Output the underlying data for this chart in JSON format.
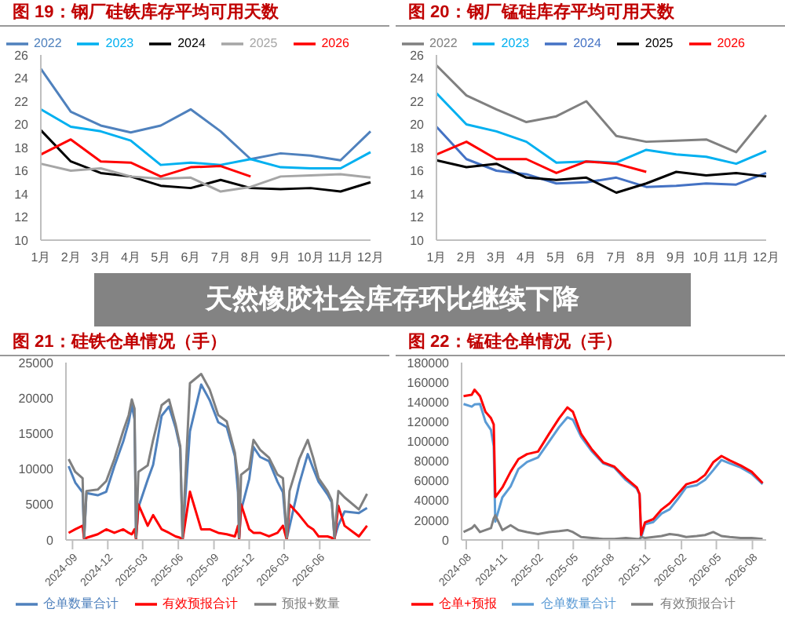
{
  "chart_data": [
    {
      "type": "line",
      "title": "图 19：钢厂硅铁库存平均可用天数",
      "categories": [
        "1月",
        "2月",
        "3月",
        "4月",
        "5月",
        "6月",
        "7月",
        "8月",
        "9月",
        "10月",
        "11月",
        "12月"
      ],
      "ylim": [
        10,
        26
      ],
      "yticks": [
        10,
        12,
        14,
        16,
        18,
        20,
        22,
        24,
        26
      ],
      "legend": "top",
      "series": [
        {
          "name": "2022",
          "color": "#4f81bd",
          "values": [
            24.8,
            21.1,
            19.9,
            19.3,
            19.9,
            21.3,
            19.4,
            17.0,
            17.5,
            17.3,
            16.9,
            19.4
          ]
        },
        {
          "name": "2023",
          "color": "#00b0f0",
          "values": [
            21.3,
            19.8,
            19.4,
            18.6,
            16.5,
            16.7,
            16.5,
            17.0,
            16.3,
            16.2,
            16.2,
            17.6
          ]
        },
        {
          "name": "2024",
          "color": "#000000",
          "values": [
            19.5,
            16.8,
            15.8,
            15.5,
            14.7,
            14.5,
            15.2,
            14.5,
            14.4,
            14.5,
            14.2,
            15.0
          ]
        },
        {
          "name": "2025",
          "color": "#a6a6a6",
          "values": [
            16.6,
            16.0,
            16.2,
            15.5,
            15.3,
            15.4,
            14.2,
            14.6,
            15.5,
            15.6,
            15.7,
            15.4
          ]
        },
        {
          "name": "2026",
          "color": "#ff0000",
          "values": [
            17.4,
            18.7,
            16.8,
            16.7,
            15.5,
            16.3,
            16.4,
            15.5,
            null,
            null,
            null,
            null
          ]
        }
      ]
    },
    {
      "type": "line",
      "title": "图 20：钢厂锰硅库存平均可用天数",
      "categories": [
        "1月",
        "2月",
        "3月",
        "4月",
        "5月",
        "6月",
        "7月",
        "8月",
        "9月",
        "10月",
        "11月",
        "12月"
      ],
      "ylim": [
        10,
        26
      ],
      "yticks": [
        10,
        12,
        14,
        16,
        18,
        20,
        22,
        24,
        26
      ],
      "legend": "top",
      "series": [
        {
          "name": "2022",
          "color": "#808080",
          "values": [
            25.1,
            22.5,
            21.3,
            20.2,
            20.7,
            22.0,
            19.0,
            18.5,
            18.6,
            18.7,
            17.6,
            20.8
          ]
        },
        {
          "name": "2023",
          "color": "#00b0f0",
          "values": [
            22.7,
            20.0,
            19.4,
            18.5,
            16.7,
            16.8,
            16.7,
            17.8,
            17.4,
            17.2,
            16.6,
            17.7
          ]
        },
        {
          "name": "2024",
          "color": "#4472c4",
          "values": [
            19.8,
            17.0,
            16.0,
            15.7,
            14.9,
            15.0,
            15.4,
            14.6,
            14.7,
            14.9,
            14.8,
            15.8
          ]
        },
        {
          "name": "2025",
          "color": "#000000",
          "values": [
            16.9,
            16.3,
            16.6,
            15.4,
            15.2,
            15.4,
            14.1,
            14.9,
            15.9,
            15.6,
            15.8,
            15.5
          ]
        },
        {
          "name": "2026",
          "color": "#ff0000",
          "values": [
            17.4,
            18.5,
            17.0,
            17.0,
            15.8,
            16.8,
            16.6,
            15.9,
            null,
            null,
            null,
            null
          ]
        }
      ]
    },
    {
      "type": "line",
      "title": "图 21：硅铁仓单情况（手）",
      "x": [
        "2024-08-22",
        "2024-09-08",
        "2024-09-27",
        "2024-10-01",
        "2024-10-07",
        "2024-11-05",
        "2024-11-27",
        "2024-12-18",
        "2025-01-10",
        "2025-01-24",
        "2025-02-01",
        "2025-02-08",
        "2025-02-12",
        "2025-02-18",
        "2025-03-14",
        "2025-03-28",
        "2025-04-19",
        "2025-05-08",
        "2025-05-25",
        "2025-06-06",
        "2025-06-12",
        "2025-07-01",
        "2025-07-30",
        "2025-08-21",
        "2025-09-12",
        "2025-10-04",
        "2025-10-25",
        "2025-11-02",
        "2025-11-05",
        "2025-11-10",
        "2025-12-01",
        "2025-12-12",
        "2025-12-29",
        "2026-01-21",
        "2026-02-12",
        "2026-02-26",
        "2026-03-08",
        "2026-03-15",
        "2026-04-09",
        "2026-05-01",
        "2026-05-15",
        "2026-05-29",
        "2026-06-21",
        "2026-07-02",
        "2026-07-09",
        "2026-07-19",
        "2026-08-04",
        "2026-09-10",
        "2026-10-01"
      ],
      "xlim": [
        "2024-08-15",
        "2026-10-10"
      ],
      "xticks": [
        "2024-09",
        "2024-12",
        "2025-03",
        "2025-06",
        "2025-09",
        "2025-12",
        "2026-03",
        "2026-06"
      ],
      "ylim": [
        0,
        25000
      ],
      "yticks": [
        0,
        5000,
        10000,
        15000,
        20000,
        25000
      ],
      "legend": "bottom",
      "series": [
        {
          "name": "仓单数量合计",
          "color": "#4f81bd",
          "values": [
            10400,
            8100,
            6700,
            300,
            6600,
            6300,
            6800,
            10400,
            13900,
            16600,
            19000,
            17000,
            300,
            4600,
            8500,
            10600,
            17500,
            18800,
            15800,
            12900,
            300,
            15300,
            21900,
            19700,
            16600,
            15900,
            11800,
            6700,
            300,
            4200,
            8600,
            13100,
            11700,
            11100,
            8200,
            6700,
            300,
            1900,
            7900,
            12100,
            10100,
            8200,
            6400,
            5300,
            300,
            2100,
            4000,
            3800,
            4500
          ]
        },
        {
          "name": "有效预报合计",
          "color": "#ff0000",
          "values": [
            1000,
            1500,
            2000,
            0,
            300,
            800,
            1500,
            1000,
            1500,
            1000,
            800,
            1500,
            0,
            5000,
            2000,
            3500,
            1500,
            1000,
            500,
            300,
            0,
            6800,
            1500,
            1500,
            1000,
            800,
            500,
            2000,
            0,
            5000,
            1500,
            1000,
            1000,
            500,
            1000,
            2000,
            0,
            5000,
            3500,
            2000,
            1500,
            500,
            500,
            300,
            0,
            4800,
            2000,
            500,
            2000
          ]
        },
        {
          "name": "预报+数量",
          "color": "#808080",
          "values": [
            11400,
            9600,
            8700,
            300,
            6900,
            7100,
            8300,
            11400,
            15400,
            17600,
            19800,
            18500,
            300,
            9600,
            10500,
            14100,
            19000,
            19800,
            16300,
            13200,
            300,
            22100,
            23400,
            21200,
            17600,
            16700,
            12300,
            8700,
            300,
            9200,
            10100,
            14100,
            12700,
            11600,
            9200,
            8700,
            300,
            6900,
            11400,
            14100,
            11600,
            8700,
            6900,
            5600,
            300,
            6900,
            6000,
            4300,
            6500
          ]
        }
      ]
    },
    {
      "type": "line",
      "title": "图 22：锰硅仓单情况（手）",
      "x": [
        "2024-07-25",
        "2024-08-15",
        "2024-08-22",
        "2024-09-05",
        "2024-09-19",
        "2024-10-03",
        "2024-10-10",
        "2024-10-14",
        "2024-11-01",
        "2024-11-22",
        "2024-12-12",
        "2025-01-03",
        "2025-01-31",
        "2025-02-28",
        "2025-03-26",
        "2025-04-16",
        "2025-04-30",
        "2025-05-21",
        "2025-06-18",
        "2025-07-16",
        "2025-08-14",
        "2025-09-12",
        "2025-10-10",
        "2025-10-17",
        "2025-10-21",
        "2025-10-31",
        "2025-11-21",
        "2025-12-12",
        "2026-01-02",
        "2026-01-23",
        "2026-02-13",
        "2026-03-12",
        "2026-04-02",
        "2026-04-23",
        "2026-05-14",
        "2026-06-04",
        "2026-07-02",
        "2026-07-30",
        "2026-08-27"
      ],
      "xlim": [
        "2024-07-20",
        "2026-09-05"
      ],
      "xticks": [
        "2024-08",
        "2024-11",
        "2025-02",
        "2025-05",
        "2025-08",
        "2025-11",
        "2026-02",
        "2026-05",
        "2026-08"
      ],
      "ylim": [
        0,
        180000
      ],
      "yticks": [
        0,
        20000,
        40000,
        60000,
        80000,
        100000,
        120000,
        140000,
        160000,
        180000
      ],
      "legend": "bottom",
      "series": [
        {
          "name": "仓单数量合计",
          "color": "#5b9bd5",
          "values": [
            138000,
            135300,
            137500,
            138000,
            120000,
            111600,
            95200,
            18600,
            43200,
            54200,
            72000,
            79100,
            83700,
            99600,
            114600,
            124500,
            122000,
            104600,
            89600,
            77800,
            73300,
            60800,
            52200,
            45800,
            2100,
            15900,
            18100,
            26800,
            31200,
            41800,
            53400,
            55600,
            61000,
            70800,
            81200,
            77700,
            73600,
            67200,
            56700
          ]
        },
        {
          "name": "有效预报合计",
          "color": "#808080",
          "values": [
            8000,
            12000,
            15000,
            8000,
            10000,
            12000,
            22000,
            25000,
            10000,
            15000,
            10000,
            8000,
            6000,
            8000,
            9000,
            10000,
            8000,
            3000,
            2000,
            1000,
            1000,
            2000,
            1000,
            1000,
            3000,
            2000,
            3000,
            4000,
            6000,
            5000,
            3000,
            4000,
            5000,
            8000,
            4000,
            3000,
            2000,
            2000,
            1000
          ]
        },
        {
          "name": "仓单+预报",
          "color": "#ff0000",
          "values": [
            146000,
            147300,
            152500,
            146000,
            130000,
            123600,
            117200,
            43600,
            53200,
            69200,
            82000,
            87100,
            89700,
            107600,
            123600,
            134500,
            130000,
            107600,
            91600,
            78800,
            74300,
            62800,
            53200,
            46800,
            5100,
            17900,
            21100,
            30800,
            37200,
            46800,
            56400,
            59600,
            66000,
            78800,
            85200,
            80700,
            75600,
            69200,
            57700
          ]
        }
      ]
    },
    {
      "type": "other",
      "title": "天然橡胶社会库存环比继续下降"
    }
  ]
}
